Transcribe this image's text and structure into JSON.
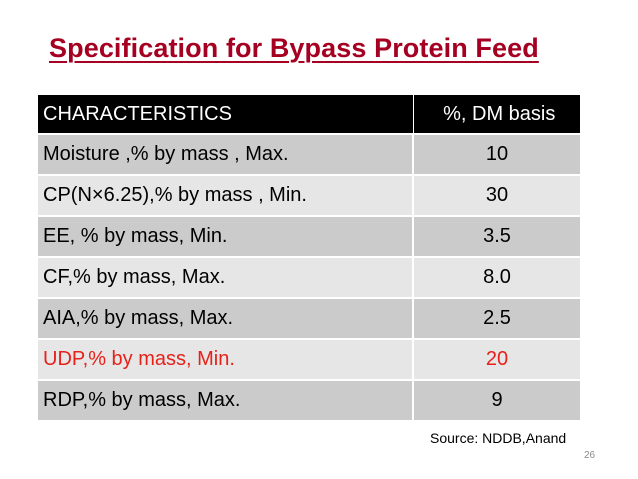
{
  "title": "Specification for Bypass Protein Feed",
  "table": {
    "headers": [
      "CHARACTERISTICS",
      "%, DM basis"
    ],
    "rows": [
      {
        "characteristic": "Moisture ,% by mass , Max.",
        "value": "10"
      },
      {
        "characteristic": "CP(N×6.25),% by mass , Min.",
        "value": "30"
      },
      {
        "characteristic": "EE, % by mass, Min.",
        "value": "3.5"
      },
      {
        "characteristic": "CF,% by mass, Max.",
        "value": "8.0"
      },
      {
        "characteristic": "AIA,% by mass, Max.",
        "value": "2.5"
      },
      {
        "characteristic": "UDP,% by mass, Min.",
        "value": "20"
      },
      {
        "characteristic": "RDP,% by mass, Max.",
        "value": "9"
      }
    ]
  },
  "source": "Source: NDDB,Anand",
  "page_number": "26",
  "colors": {
    "title": "#a50021",
    "header_bg": "#000000",
    "row_dark": "#cbcbcb",
    "row_light": "#e6e6e6",
    "highlight_text": "#e8201a"
  }
}
